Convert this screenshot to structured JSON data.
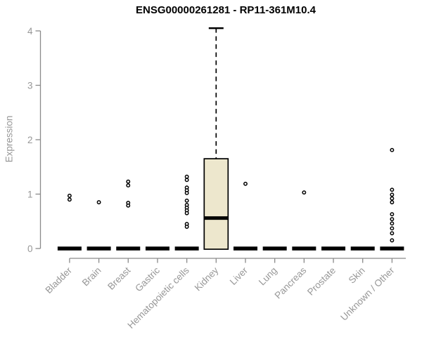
{
  "chart_data": {
    "type": "boxplot",
    "title": "ENSG00000261281 - RP11-361M10.4",
    "ylabel": "Expression",
    "xlabel": "",
    "yticks": [
      0,
      1,
      2,
      3,
      4
    ],
    "ylim": [
      0,
      4.1
    ],
    "grid": false,
    "legend": "none",
    "categories": [
      "Bladder",
      "Brain",
      "Breast",
      "Gastric",
      "Hematopoietic cells",
      "Kidney",
      "Liver",
      "Lung",
      "Pancreas",
      "Prostate",
      "Skin",
      "Unknown / Other"
    ],
    "groups": [
      {
        "label": "Bladder",
        "median": 0,
        "points": [
          0.97,
          0.9
        ]
      },
      {
        "label": "Brain",
        "median": 0,
        "points": [
          0.85
        ]
      },
      {
        "label": "Breast",
        "median": 0,
        "points": [
          1.23,
          1.16,
          0.84,
          0.79
        ]
      },
      {
        "label": "Gastric",
        "median": 0,
        "points": []
      },
      {
        "label": "Hematopoietic cells",
        "median": 0,
        "points": [
          1.32,
          1.26,
          1.12,
          1.07,
          1.02,
          0.88,
          0.8,
          0.75,
          0.7,
          0.65,
          0.45,
          0.4
        ]
      },
      {
        "label": "Kidney",
        "median": 0.56,
        "q1": 0,
        "q3": 1.65,
        "whisker_high": 4.05,
        "points": []
      },
      {
        "label": "Liver",
        "median": 0,
        "points": [
          1.19
        ]
      },
      {
        "label": "Lung",
        "median": 0,
        "points": []
      },
      {
        "label": "Pancreas",
        "median": 0,
        "points": [
          1.03
        ]
      },
      {
        "label": "Prostate",
        "median": 0,
        "points": []
      },
      {
        "label": "Skin",
        "median": 0,
        "points": []
      },
      {
        "label": "Unknown / Other",
        "median": 0,
        "points": [
          1.81,
          1.08,
          0.99,
          0.92,
          0.85,
          0.63,
          0.54,
          0.46,
          0.37,
          0.28,
          0.15
        ]
      }
    ],
    "colors": {
      "box_fill": "#ede7cd",
      "box_stroke": "#000000",
      "median": "#000000",
      "point_stroke": "#000000",
      "point_fill": "#ffffff",
      "axis": "#8a8a8a",
      "tick_text": "#979797",
      "title_text": "#000000"
    }
  }
}
